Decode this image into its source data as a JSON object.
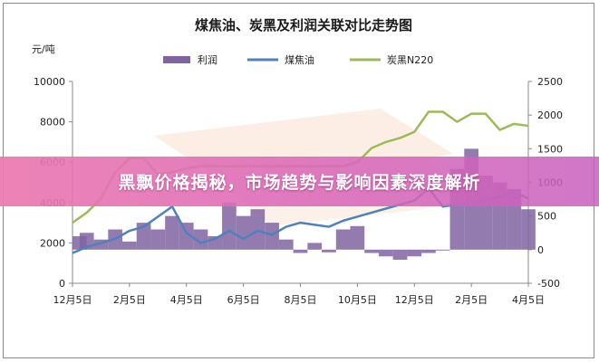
{
  "banner": {
    "text": "黑飘价格揭秘，市场趋势与影响因素深度解析"
  },
  "chart_data": {
    "type": "line",
    "title": "煤焦油、炭黑及利润关联对比走势图",
    "y_unit": "元/吨",
    "x_tick_labels": [
      "12月5日",
      "2月5日",
      "4月5日",
      "6月5日",
      "8月5日",
      "10月5日",
      "12月5日",
      "2月5日",
      "4月5日"
    ],
    "left_axis": {
      "ylim": [
        0,
        10000
      ],
      "ticks": [
        0,
        2000,
        4000,
        6000,
        8000,
        10000
      ]
    },
    "right_axis": {
      "ylim": [
        -500,
        2500
      ],
      "ticks": [
        -500,
        0,
        500,
        1000,
        1500,
        2000,
        2500
      ]
    },
    "legend_position": "top",
    "series": [
      {
        "name": "利润",
        "style": "area",
        "axis": "right",
        "color": "#8064a2",
        "x": [
          0,
          0.25,
          0.5,
          0.75,
          1,
          1.25,
          1.5,
          1.75,
          2,
          2.25,
          2.5,
          2.75,
          3,
          3.25,
          3.5,
          3.75,
          4,
          4.25,
          4.5,
          4.75,
          5,
          5.25,
          5.5,
          5.75,
          6,
          6.25,
          6.5,
          6.75,
          7,
          7.25,
          7.5,
          7.75,
          8
        ],
        "values": [
          200,
          250,
          150,
          300,
          120,
          400,
          300,
          500,
          400,
          300,
          200,
          700,
          500,
          600,
          400,
          150,
          -50,
          100,
          -40,
          300,
          350,
          -50,
          -100,
          -150,
          -100,
          -50,
          0,
          1200,
          1500,
          1100,
          1000,
          900,
          600
        ]
      },
      {
        "name": "煤焦油",
        "style": "line",
        "axis": "left",
        "color": "#4f81bd",
        "x": [
          0,
          0.25,
          0.5,
          0.75,
          1,
          1.25,
          1.5,
          1.75,
          2,
          2.25,
          2.5,
          2.75,
          3,
          3.25,
          3.5,
          3.75,
          4,
          4.25,
          4.5,
          4.75,
          5,
          5.25,
          5.5,
          5.75,
          6,
          6.25,
          6.5,
          6.75,
          7,
          7.25,
          7.5,
          7.75,
          8
        ],
        "values": [
          1500,
          1800,
          2000,
          2200,
          2600,
          2800,
          3300,
          3800,
          2500,
          2000,
          2200,
          2600,
          2200,
          2600,
          2400,
          2800,
          3000,
          2900,
          2800,
          3100,
          3300,
          3500,
          3700,
          3900,
          4100,
          4700,
          3800,
          3900,
          4000,
          4100,
          4300,
          4500,
          4200
        ]
      },
      {
        "name": "炭黑N220",
        "style": "line",
        "axis": "left",
        "color": "#9bbb59",
        "x": [
          0,
          0.25,
          0.5,
          0.75,
          1,
          1.25,
          1.5,
          1.75,
          2,
          2.25,
          2.5,
          2.75,
          3,
          3.25,
          3.5,
          3.75,
          4,
          4.25,
          4.5,
          4.75,
          5,
          5.25,
          5.5,
          5.75,
          6,
          6.25,
          6.5,
          6.75,
          7,
          7.25,
          7.5,
          7.75,
          8
        ],
        "values": [
          3000,
          3500,
          4200,
          5500,
          6200,
          6200,
          5400,
          5500,
          5700,
          5800,
          5800,
          5800,
          5800,
          5800,
          5800,
          5800,
          5800,
          5800,
          5800,
          5800,
          6000,
          6700,
          7000,
          7200,
          7500,
          8500,
          8500,
          8000,
          8400,
          8400,
          7600,
          7900,
          7800
        ]
      }
    ]
  }
}
